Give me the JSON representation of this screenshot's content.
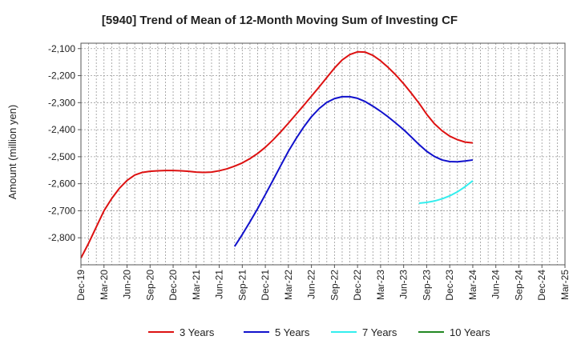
{
  "chart_data": {
    "type": "line",
    "title": "[5940]  Trend of Mean of 12-Month Moving Sum of Investing CF",
    "ylabel": "Amount (million yen)",
    "xlabel": "",
    "ylim": [
      -2900,
      -2080
    ],
    "yticks": [
      -2100,
      -2200,
      -2300,
      -2400,
      -2500,
      -2600,
      -2700,
      -2800
    ],
    "ytick_labels": [
      "-2,100",
      "-2,200",
      "-2,300",
      "-2,400",
      "-2,500",
      "-2,600",
      "-2,700",
      "-2,800"
    ],
    "xlim": [
      0,
      63
    ],
    "xtick_positions": [
      0,
      3,
      6,
      9,
      12,
      15,
      18,
      21,
      24,
      27,
      30,
      33,
      36,
      39,
      42,
      45,
      48,
      51,
      54,
      57,
      60,
      63
    ],
    "xtick_labels": [
      "Dec-19",
      "Mar-20",
      "Jun-20",
      "Sep-20",
      "Dec-20",
      "Mar-21",
      "Jun-21",
      "Sep-21",
      "Dec-21",
      "Mar-22",
      "Jun-22",
      "Sep-22",
      "Dec-22",
      "Mar-23",
      "Jun-23",
      "Sep-23",
      "Dec-23",
      "Mar-24",
      "Jun-24",
      "Sep-24",
      "Dec-24",
      "Mar-25"
    ],
    "grid": true,
    "legend_position": "bottom",
    "series": [
      {
        "name": "3 Years",
        "color": "#dd1111",
        "x": [
          0,
          1,
          2,
          3,
          4,
          5,
          6,
          7,
          8,
          9,
          10,
          11,
          12,
          13,
          14,
          15,
          16,
          17,
          18,
          19,
          20,
          21,
          22,
          23,
          24,
          25,
          26,
          27,
          28,
          29,
          30,
          31,
          32,
          33,
          34,
          35,
          36,
          37,
          38,
          39,
          40,
          41,
          42,
          43,
          44,
          45,
          46,
          47,
          48,
          49,
          50,
          51
        ],
        "values": [
          -2875,
          -2820,
          -2760,
          -2700,
          -2655,
          -2617,
          -2588,
          -2568,
          -2558,
          -2554,
          -2552,
          -2551,
          -2551,
          -2552,
          -2554,
          -2557,
          -2558,
          -2557,
          -2552,
          -2545,
          -2535,
          -2523,
          -2507,
          -2488,
          -2465,
          -2438,
          -2408,
          -2376,
          -2343,
          -2310,
          -2276,
          -2242,
          -2207,
          -2172,
          -2142,
          -2122,
          -2112,
          -2113,
          -2125,
          -2145,
          -2170,
          -2198,
          -2230,
          -2265,
          -2302,
          -2343,
          -2378,
          -2404,
          -2424,
          -2437,
          -2446,
          -2449
        ]
      },
      {
        "name": "5 Years",
        "color": "#1111cc",
        "x": [
          20,
          21,
          22,
          23,
          24,
          25,
          26,
          27,
          28,
          29,
          30,
          31,
          32,
          33,
          34,
          35,
          36,
          37,
          38,
          39,
          40,
          41,
          42,
          43,
          44,
          45,
          46,
          47,
          48,
          49,
          50,
          51
        ],
        "values": [
          -2832,
          -2788,
          -2741,
          -2692,
          -2640,
          -2587,
          -2533,
          -2480,
          -2433,
          -2390,
          -2352,
          -2322,
          -2299,
          -2285,
          -2278,
          -2278,
          -2284,
          -2296,
          -2313,
          -2332,
          -2353,
          -2376,
          -2400,
          -2427,
          -2455,
          -2480,
          -2499,
          -2512,
          -2518,
          -2519,
          -2516,
          -2512
        ]
      },
      {
        "name": "7 Years",
        "color": "#33eeee",
        "x": [
          44,
          45,
          46,
          47,
          48,
          49,
          50,
          51
        ],
        "values": [
          -2672,
          -2669,
          -2664,
          -2656,
          -2645,
          -2630,
          -2611,
          -2589
        ]
      },
      {
        "name": "10 Years",
        "color": "#228822",
        "x": [],
        "values": []
      }
    ]
  }
}
